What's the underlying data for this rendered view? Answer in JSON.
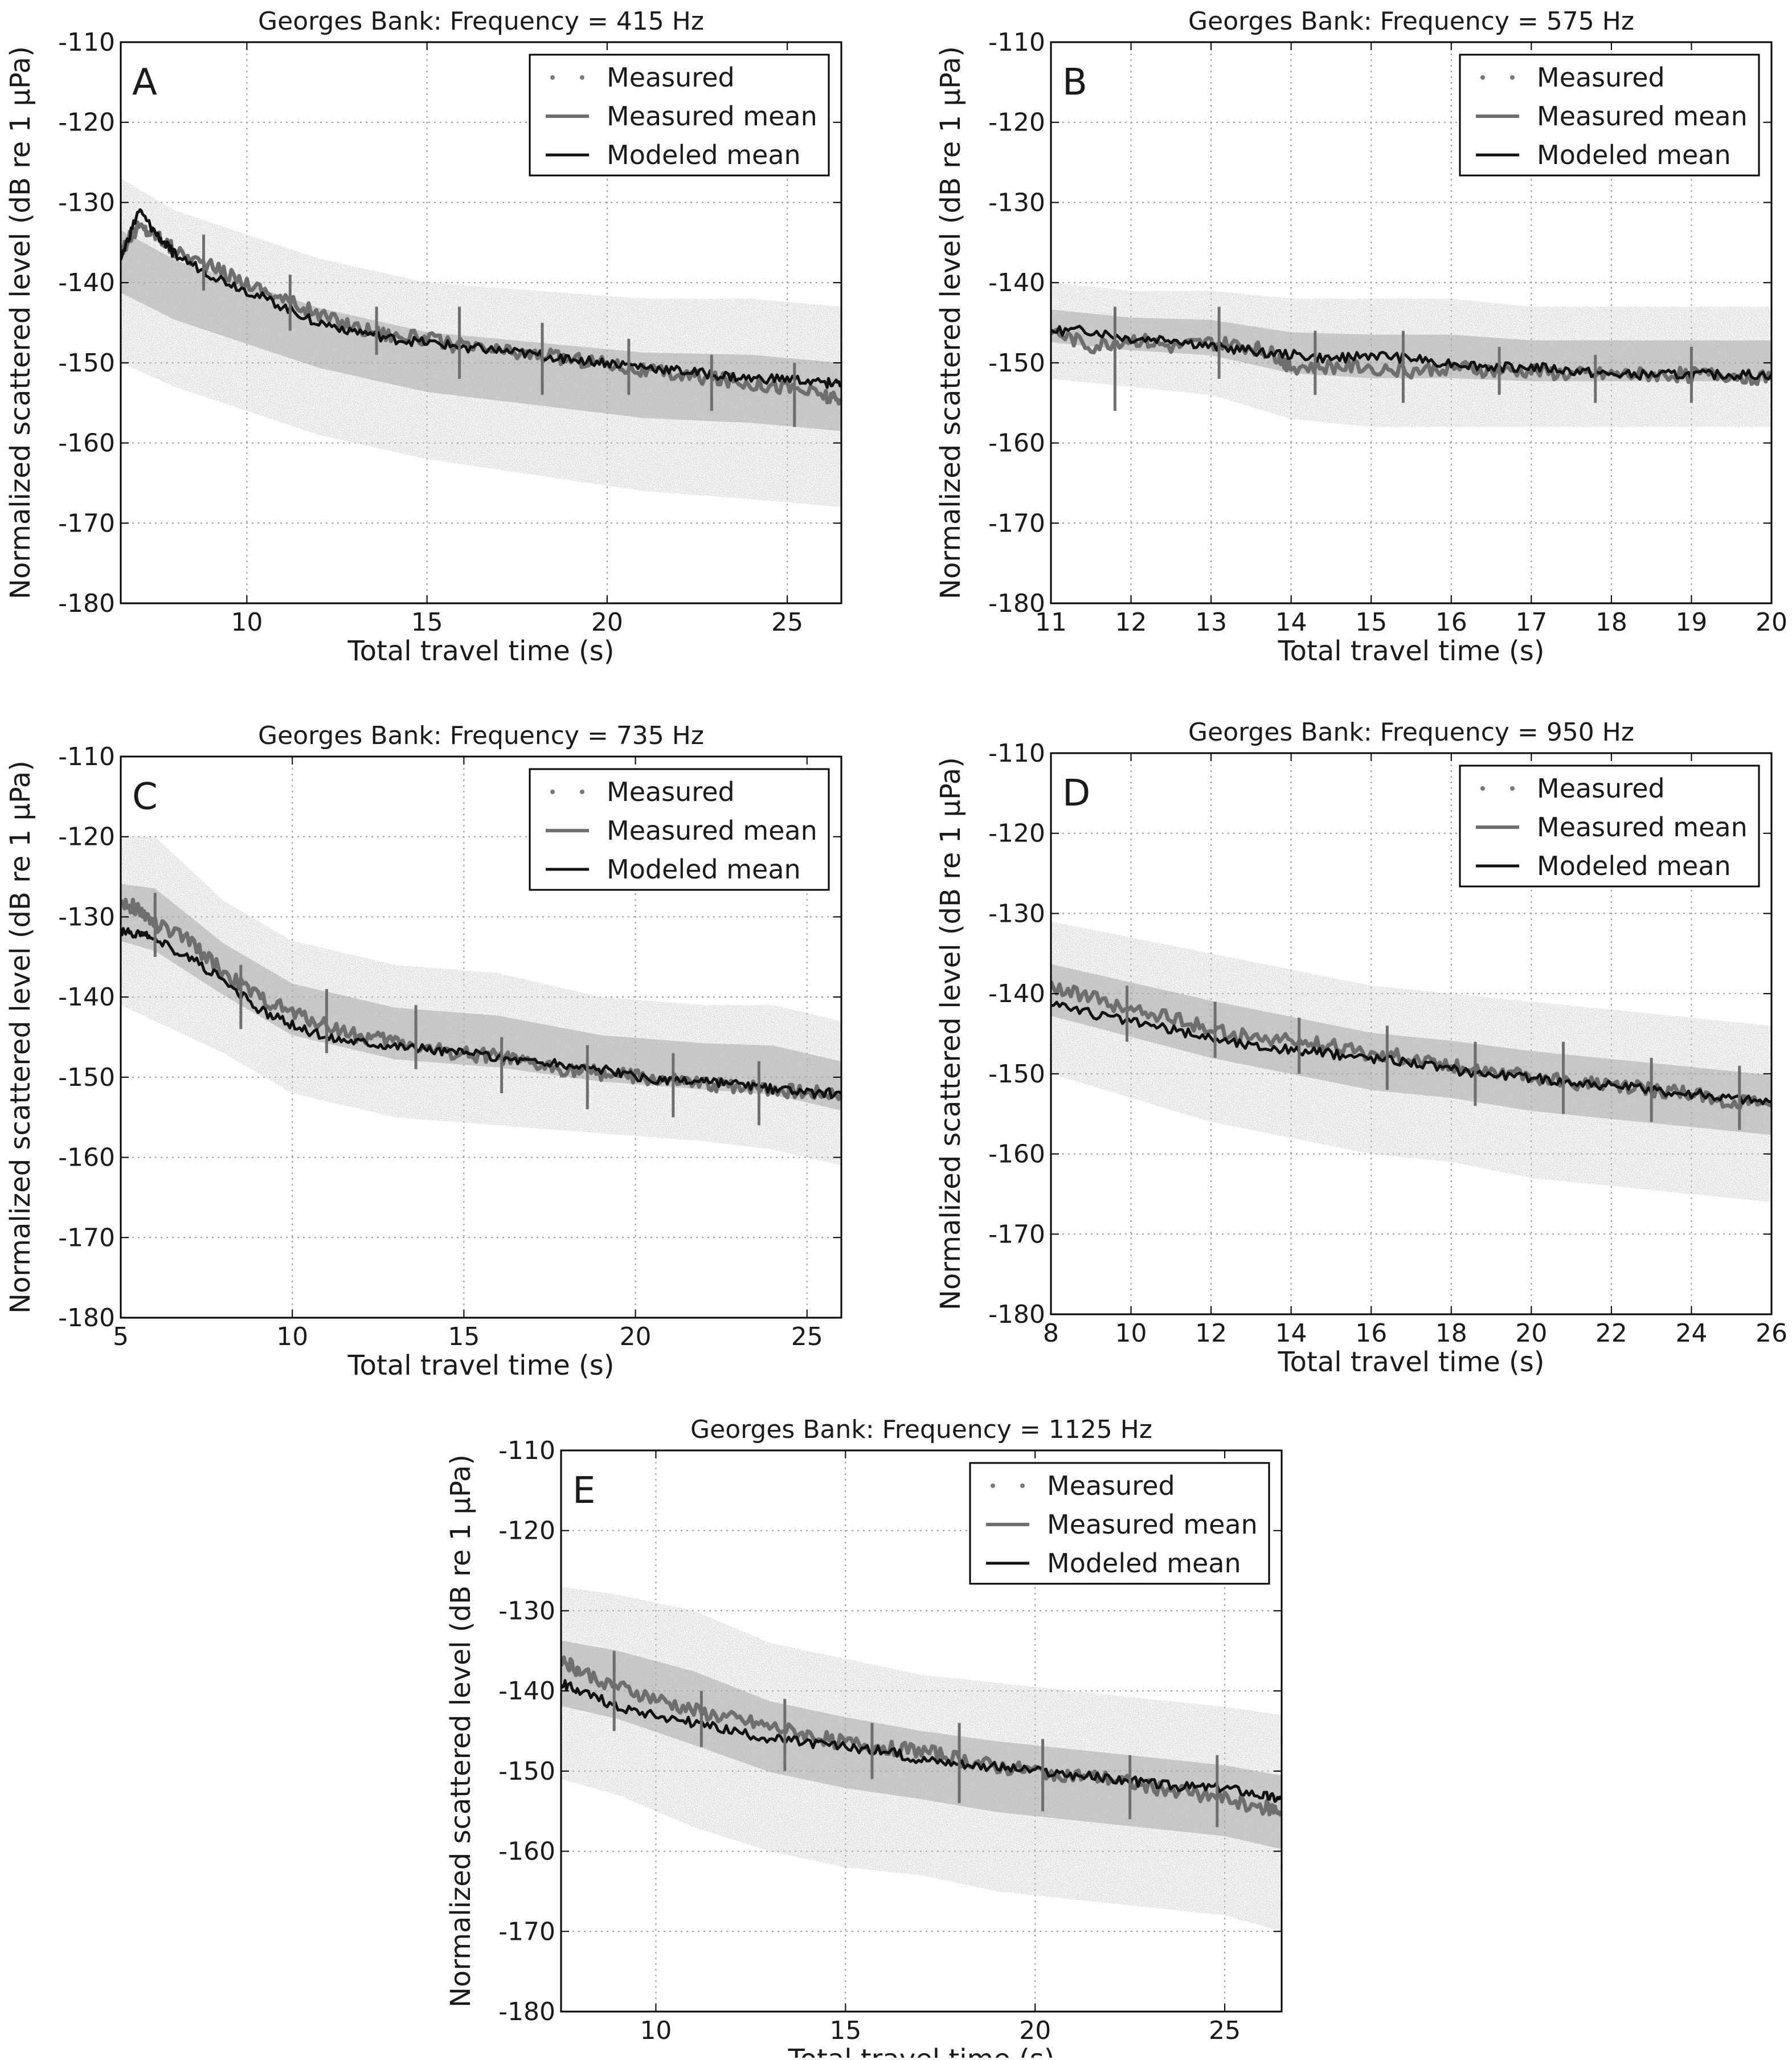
{
  "figure": {
    "suptitle_prefix": "Georges Bank"
  },
  "chart_data": [
    {
      "panel": "A",
      "type": "line",
      "title": "Georges Bank: Frequency = 415 Hz",
      "xlabel": "Total travel time (s)",
      "ylabel": "Normalized scattered level (dB re 1 μPa)",
      "xlim": [
        6.5,
        26.5
      ],
      "ylim": [
        -180,
        -110
      ],
      "xticks": [
        10,
        15,
        20,
        25
      ],
      "yticks": [
        -110,
        -120,
        -130,
        -140,
        -150,
        -160,
        -170,
        -180
      ],
      "grid": true,
      "legend": [
        "Measured",
        "Measured mean",
        "Modeled mean"
      ],
      "legend_position": "top-right",
      "series": [
        {
          "name": "Measured mean",
          "style": "gray-line",
          "x": [
            6.5,
            7.0,
            7.5,
            8.0,
            9.0,
            10.0,
            11.0,
            12.0,
            13.0,
            14.0,
            15.0,
            16.0,
            17.0,
            18.0,
            19.0,
            20.0,
            21.0,
            22.0,
            23.0,
            24.0,
            25.0,
            26.0,
            26.5
          ],
          "y": [
            -136,
            -133,
            -134,
            -136,
            -138,
            -140,
            -142,
            -144,
            -145.5,
            -146.5,
            -147,
            -148,
            -148.5,
            -149,
            -149.5,
            -150,
            -151,
            -151.5,
            -152,
            -152.5,
            -153,
            -154,
            -155
          ]
        },
        {
          "name": "Modeled mean",
          "style": "black-line",
          "x": [
            6.5,
            7.0,
            7.5,
            8.0,
            9.0,
            10.0,
            11.0,
            12.0,
            13.0,
            14.0,
            15.0,
            16.0,
            17.0,
            18.0,
            19.0,
            20.0,
            21.0,
            22.0,
            23.0,
            24.0,
            25.0,
            26.0,
            26.5
          ],
          "y": [
            -137,
            -131,
            -134,
            -136.5,
            -139,
            -141,
            -143,
            -145,
            -146,
            -147,
            -147.5,
            -148,
            -148.5,
            -149,
            -149.5,
            -150,
            -150.5,
            -151,
            -151.5,
            -152,
            -152,
            -152.5,
            -152.5
          ]
        }
      ],
      "error_bars": [
        {
          "x": 8.8,
          "low": -141,
          "high": -134
        },
        {
          "x": 11.2,
          "low": -146,
          "high": -139
        },
        {
          "x": 13.6,
          "low": -149,
          "high": -143
        },
        {
          "x": 15.9,
          "low": -152,
          "high": -143
        },
        {
          "x": 18.2,
          "low": -154,
          "high": -145
        },
        {
          "x": 20.6,
          "low": -154,
          "high": -147
        },
        {
          "x": 22.9,
          "low": -156,
          "high": -149
        },
        {
          "x": 25.2,
          "low": -158,
          "high": -150
        }
      ],
      "scatter_band": {
        "x": [
          6.5,
          8,
          10,
          12,
          15,
          18,
          21,
          24,
          26.5
        ],
        "upper": [
          -127,
          -131,
          -134,
          -137,
          -140,
          -141,
          -142,
          -142,
          -143
        ],
        "lower": [
          -150,
          -153,
          -156,
          -159,
          -162,
          -164,
          -166,
          -167,
          -168
        ]
      }
    },
    {
      "panel": "B",
      "type": "line",
      "title": "Georges Bank: Frequency = 575 Hz",
      "xlabel": "Total travel time (s)",
      "ylabel": "Normalized scattered level (dB re 1 μPa)",
      "xlim": [
        11,
        20
      ],
      "ylim": [
        -180,
        -110
      ],
      "xticks": [
        11,
        12,
        13,
        14,
        15,
        16,
        17,
        18,
        19,
        20
      ],
      "yticks": [
        -110,
        -120,
        -130,
        -140,
        -150,
        -160,
        -170,
        -180
      ],
      "grid": true,
      "legend": [
        "Measured",
        "Measured mean",
        "Modeled mean"
      ],
      "legend_position": "top-right",
      "series": [
        {
          "name": "Measured mean",
          "style": "gray-line",
          "x": [
            11.0,
            11.5,
            12.0,
            12.5,
            13.0,
            13.5,
            13.8,
            14.0,
            14.5,
            15.0,
            15.5,
            16.0,
            16.5,
            17.0,
            17.5,
            18.0,
            18.5,
            19.0,
            19.5,
            20.0
          ],
          "y": [
            -146,
            -148,
            -147,
            -148,
            -147.5,
            -148,
            -149,
            -150.5,
            -150.5,
            -150.5,
            -151,
            -150.5,
            -151,
            -151,
            -151.5,
            -151.5,
            -151.5,
            -151.5,
            -151.5,
            -152
          ]
        },
        {
          "name": "Modeled mean",
          "style": "black-line",
          "x": [
            11.0,
            11.5,
            12.0,
            12.5,
            13.0,
            13.5,
            14.0,
            14.5,
            15.0,
            15.5,
            16.0,
            16.5,
            17.0,
            17.5,
            18.0,
            18.5,
            19.0,
            19.5,
            20.0
          ],
          "y": [
            -146,
            -146,
            -147,
            -147,
            -148,
            -148.5,
            -149,
            -149.5,
            -149,
            -149.5,
            -150,
            -150.5,
            -150.5,
            -151,
            -151.5,
            -151.5,
            -151.5,
            -151.5,
            -151.5
          ]
        }
      ],
      "error_bars": [
        {
          "x": 11.8,
          "low": -156,
          "high": -143
        },
        {
          "x": 13.1,
          "low": -152,
          "high": -143
        },
        {
          "x": 14.3,
          "low": -154,
          "high": -146
        },
        {
          "x": 15.4,
          "low": -155,
          "high": -146
        },
        {
          "x": 16.6,
          "low": -154,
          "high": -148
        },
        {
          "x": 17.8,
          "low": -155,
          "high": -149
        },
        {
          "x": 19.0,
          "low": -155,
          "high": -148
        }
      ],
      "scatter_band": {
        "x": [
          11,
          12,
          13,
          14,
          15,
          16,
          17,
          18,
          19,
          20
        ],
        "upper": [
          -140,
          -141,
          -141,
          -142,
          -142,
          -142,
          -143,
          -143,
          -143,
          -143
        ],
        "lower": [
          -152,
          -153,
          -154,
          -157,
          -158,
          -158,
          -158,
          -158,
          -158,
          -158
        ]
      }
    },
    {
      "panel": "C",
      "type": "line",
      "title": "Georges Bank: Frequency = 735 Hz",
      "xlabel": "Total travel time (s)",
      "ylabel": "Normalized scattered level (dB re 1 μPa)",
      "xlim": [
        5,
        26
      ],
      "ylim": [
        -180,
        -110
      ],
      "xticks": [
        5,
        10,
        15,
        20,
        25
      ],
      "yticks": [
        -110,
        -120,
        -130,
        -140,
        -150,
        -160,
        -170,
        -180
      ],
      "grid": true,
      "legend": [
        "Measured",
        "Measured mean",
        "Modeled mean"
      ],
      "legend_position": "top-right",
      "series": [
        {
          "name": "Measured mean",
          "style": "gray-line",
          "x": [
            5.0,
            5.5,
            6.0,
            7.0,
            8.0,
            9.0,
            10.0,
            11.0,
            12.0,
            13.0,
            14.0,
            15.0,
            16.0,
            17.0,
            18.0,
            19.0,
            20.0,
            21.0,
            22.0,
            23.0,
            24.0,
            25.0,
            26.0
          ],
          "y": [
            -128,
            -129,
            -131,
            -133,
            -137,
            -140,
            -142,
            -143.5,
            -145,
            -145.5,
            -146.5,
            -147,
            -147.5,
            -148.5,
            -149,
            -149.5,
            -150,
            -150.5,
            -151,
            -151,
            -151.5,
            -152,
            -152
          ]
        },
        {
          "name": "Modeled mean",
          "style": "black-line",
          "x": [
            5.0,
            5.5,
            6.0,
            7.0,
            8.0,
            9.0,
            10.0,
            11.0,
            12.0,
            13.0,
            14.0,
            15.0,
            16.0,
            17.0,
            18.0,
            19.0,
            20.0,
            21.0,
            22.0,
            23.0,
            24.0,
            25.0,
            26.0
          ],
          "y": [
            -132,
            -132,
            -133,
            -135,
            -138,
            -141.5,
            -143.5,
            -145,
            -145.5,
            -146,
            -146.5,
            -147,
            -147.5,
            -148,
            -148.5,
            -149,
            -150,
            -150.5,
            -150.5,
            -151,
            -151.5,
            -152,
            -152
          ]
        }
      ],
      "error_bars": [
        {
          "x": 6.0,
          "low": -135,
          "high": -127
        },
        {
          "x": 8.5,
          "low": -144,
          "high": -136
        },
        {
          "x": 11.0,
          "low": -147,
          "high": -139
        },
        {
          "x": 13.6,
          "low": -149,
          "high": -141
        },
        {
          "x": 16.1,
          "low": -152,
          "high": -145
        },
        {
          "x": 18.6,
          "low": -154,
          "high": -146
        },
        {
          "x": 21.1,
          "low": -155,
          "high": -147
        },
        {
          "x": 23.6,
          "low": -156,
          "high": -148
        }
      ],
      "scatter_band": {
        "x": [
          5,
          6,
          8,
          10,
          13,
          16,
          19,
          22,
          24,
          26
        ],
        "upper": [
          -120,
          -120,
          -128,
          -133,
          -136,
          -137,
          -140,
          -141,
          -141,
          -143
        ],
        "lower": [
          -141,
          -143,
          -147,
          -152,
          -155,
          -156,
          -157,
          -158,
          -159,
          -161
        ]
      }
    },
    {
      "panel": "D",
      "type": "line",
      "title": "Georges Bank: Frequency = 950 Hz",
      "xlabel": "Total travel time (s)",
      "ylabel": "Normalized scattered level (dB re 1 μPa)",
      "xlim": [
        8,
        26
      ],
      "ylim": [
        -180,
        -110
      ],
      "xticks": [
        8,
        10,
        12,
        14,
        16,
        18,
        20,
        22,
        24,
        26
      ],
      "yticks": [
        -110,
        -120,
        -130,
        -140,
        -150,
        -160,
        -170,
        -180
      ],
      "grid": true,
      "legend": [
        "Measured",
        "Measured mean",
        "Modeled mean"
      ],
      "legend_position": "top-right",
      "series": [
        {
          "name": "Measured mean",
          "style": "gray-line",
          "x": [
            8,
            9,
            10,
            11,
            12,
            13,
            14,
            15,
            16,
            17,
            18,
            19,
            20,
            21,
            22,
            23,
            24,
            25,
            26
          ],
          "y": [
            -139,
            -140.5,
            -142,
            -143,
            -144.5,
            -145.5,
            -146,
            -146.5,
            -147.5,
            -148,
            -149,
            -149.5,
            -150.5,
            -151,
            -151.5,
            -152,
            -152.5,
            -153.5,
            -154
          ]
        },
        {
          "name": "Modeled mean",
          "style": "black-line",
          "x": [
            8,
            9,
            10,
            11,
            12,
            13,
            14,
            15,
            16,
            17,
            18,
            19,
            20,
            21,
            22,
            23,
            24,
            25,
            26
          ],
          "y": [
            -141,
            -142.5,
            -143.5,
            -144.5,
            -145.5,
            -146.5,
            -147,
            -147.5,
            -148,
            -148.5,
            -149.5,
            -150,
            -150.5,
            -151,
            -151.5,
            -152,
            -152.5,
            -153,
            -153.5
          ]
        }
      ],
      "error_bars": [
        {
          "x": 9.9,
          "low": -146,
          "high": -139
        },
        {
          "x": 12.1,
          "low": -148,
          "high": -141
        },
        {
          "x": 14.2,
          "low": -150,
          "high": -143
        },
        {
          "x": 16.4,
          "low": -152,
          "high": -144
        },
        {
          "x": 18.6,
          "low": -154,
          "high": -146
        },
        {
          "x": 20.8,
          "low": -155,
          "high": -146
        },
        {
          "x": 23.0,
          "low": -156,
          "high": -148
        },
        {
          "x": 25.2,
          "low": -157,
          "high": -149
        }
      ],
      "scatter_band": {
        "x": [
          8,
          10,
          12,
          14,
          16,
          18,
          20,
          22,
          24,
          26
        ],
        "upper": [
          -131,
          -133,
          -135,
          -137,
          -139,
          -140,
          -141,
          -142,
          -143,
          -144
        ],
        "lower": [
          -150,
          -153,
          -156,
          -158,
          -160,
          -161,
          -163,
          -164,
          -165,
          -166
        ]
      }
    },
    {
      "panel": "E",
      "type": "line",
      "title": "Georges Bank: Frequency = 1125 Hz",
      "xlabel": "Total travel time (s)",
      "ylabel": "Normalized scattered level (dB re 1 μPa)",
      "xlim": [
        7.5,
        26.5
      ],
      "ylim": [
        -180,
        -110
      ],
      "xticks": [
        10,
        15,
        20,
        25
      ],
      "yticks": [
        -110,
        -120,
        -130,
        -140,
        -150,
        -160,
        -170,
        -180
      ],
      "grid": true,
      "legend": [
        "Measured",
        "Measured mean",
        "Modeled mean"
      ],
      "legend_position": "top-right",
      "series": [
        {
          "name": "Measured mean",
          "style": "gray-line",
          "x": [
            7.5,
            8,
            9,
            10,
            11,
            12,
            13,
            14,
            15,
            16,
            17,
            18,
            19,
            20,
            21,
            22,
            23,
            24,
            25,
            26,
            26.5
          ],
          "y": [
            -136,
            -137.5,
            -139.5,
            -141,
            -142.5,
            -143.5,
            -144.5,
            -145.5,
            -146.5,
            -147,
            -147.5,
            -148.5,
            -149.5,
            -150,
            -150.5,
            -151,
            -152,
            -152.5,
            -153.5,
            -154.5,
            -155
          ]
        },
        {
          "name": "Modeled mean",
          "style": "black-line",
          "x": [
            7.5,
            8,
            9,
            10,
            11,
            12,
            13,
            14,
            15,
            16,
            17,
            18,
            19,
            20,
            21,
            22,
            23,
            24,
            25,
            26,
            26.5
          ],
          "y": [
            -139,
            -140,
            -142,
            -143,
            -144,
            -145,
            -146,
            -146.5,
            -147,
            -147.5,
            -148.5,
            -149,
            -149.5,
            -150,
            -150.5,
            -151,
            -151.5,
            -152,
            -152,
            -153,
            -153.5
          ]
        }
      ],
      "error_bars": [
        {
          "x": 8.9,
          "low": -145,
          "high": -135
        },
        {
          "x": 11.2,
          "low": -147,
          "high": -140
        },
        {
          "x": 13.4,
          "low": -150,
          "high": -141
        },
        {
          "x": 15.7,
          "low": -151,
          "high": -144
        },
        {
          "x": 18.0,
          "low": -154,
          "high": -144
        },
        {
          "x": 20.2,
          "low": -155,
          "high": -146
        },
        {
          "x": 22.5,
          "low": -156,
          "high": -148
        },
        {
          "x": 24.8,
          "low": -157,
          "high": -148
        }
      ],
      "scatter_band": {
        "x": [
          7.5,
          9,
          11,
          13,
          15,
          17,
          19,
          21,
          23,
          25,
          26.5
        ],
        "upper": [
          -127,
          -128,
          -130,
          -134,
          -136,
          -138,
          -139,
          -140,
          -141,
          -142,
          -143
        ],
        "lower": [
          -151,
          -153,
          -157,
          -160,
          -162,
          -163,
          -165,
          -166,
          -167,
          -168,
          -170
        ]
      }
    }
  ]
}
